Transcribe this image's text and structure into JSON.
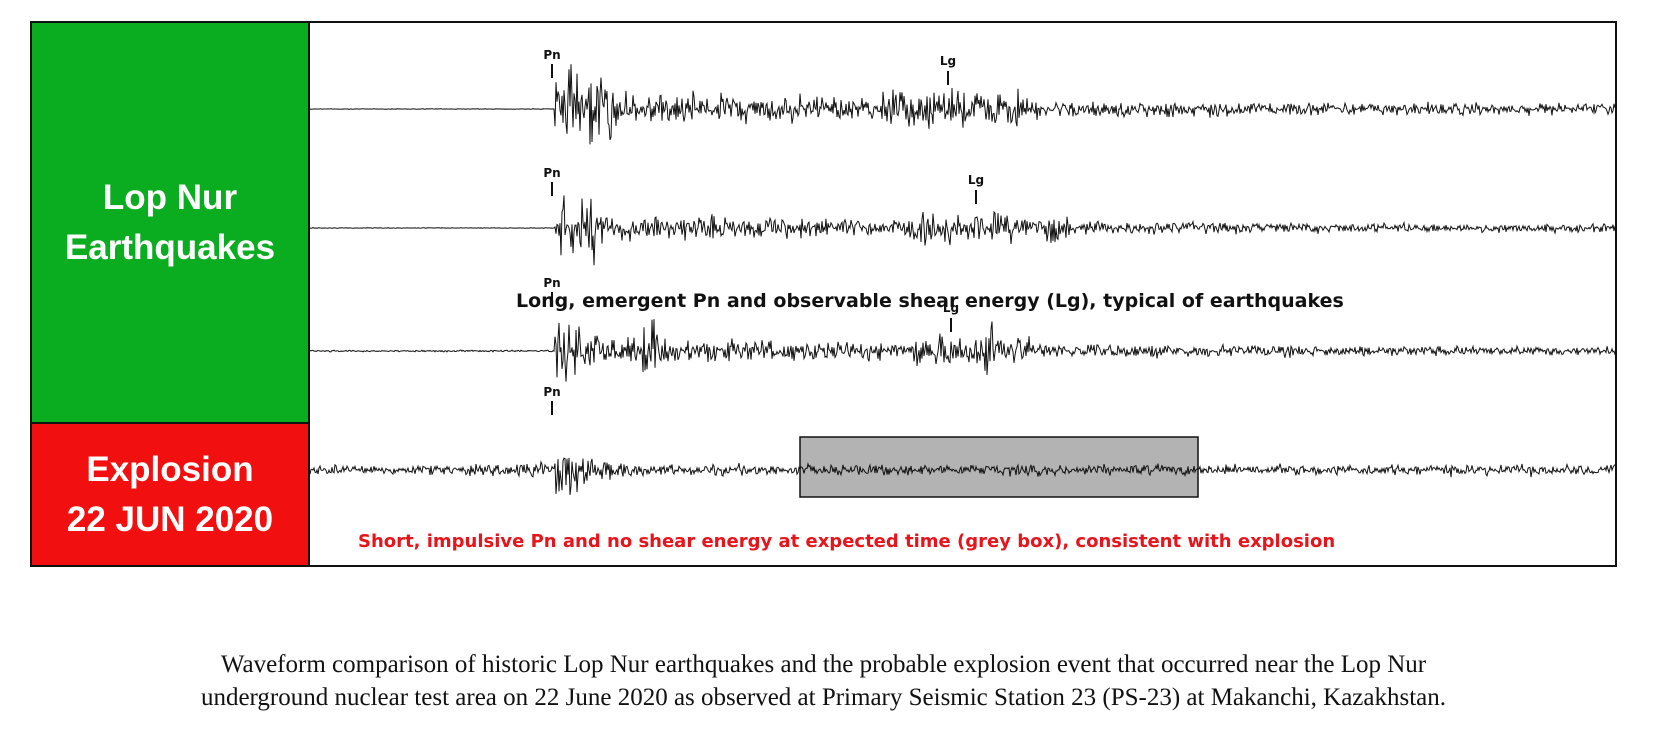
{
  "panels": {
    "earthquakes": {
      "line1": "Lop Nur",
      "line2": "Earthquakes",
      "color": "#09ad1f"
    },
    "explosion": {
      "line1": "Explosion",
      "line2": "22 JUN 2020",
      "color": "#f20f0f"
    }
  },
  "annotations": {
    "earthquakes": "Long, emergent Pn and observable shear energy (Lg), typical of earthquakes",
    "explosion": "Short, impulsive Pn and no shear energy at expected time (grey box), consistent with explosion",
    "explosion_color": "#e8141c"
  },
  "phase_labels": {
    "pn": "Pn",
    "lg": "Lg"
  },
  "traces": [
    {
      "event": "earthquake-1",
      "labels": [
        "Pn",
        "Lg"
      ]
    },
    {
      "event": "earthquake-2",
      "labels": [
        "Pn",
        "Lg"
      ]
    },
    {
      "event": "earthquake-3",
      "labels": [
        "Pn",
        "Lg"
      ]
    },
    {
      "event": "explosion",
      "labels": [
        "Pn"
      ]
    }
  ],
  "grey_box_color": "#b3b3b3",
  "caption": {
    "line1": "Waveform comparison of historic Lop Nur earthquakes and the probable explosion event that occurred near the Lop Nur",
    "line2": "underground nuclear test area on 22 June 2020 as observed at Primary Seismic Station 23 (PS-23) at Makanchi, Kazakhstan."
  }
}
